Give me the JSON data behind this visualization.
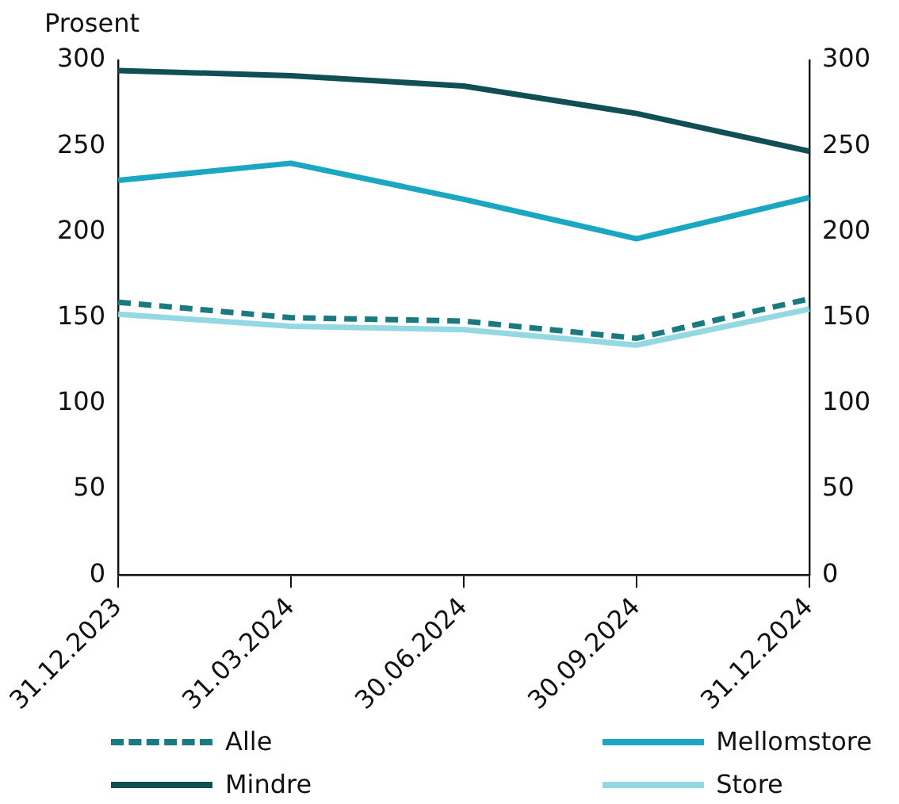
{
  "chart_data": {
    "type": "line",
    "ylabel": "Prosent",
    "categories": [
      "31.12.2023",
      "31.03.2024",
      "30.06.2024",
      "30.09.2024",
      "31.12.2024"
    ],
    "series": [
      {
        "name": "Alle",
        "color": "#1a7a80",
        "line_style": "dashed",
        "values": [
          159,
          150,
          148,
          138,
          161
        ]
      },
      {
        "name": "Mellomstore",
        "color": "#1ba6c1",
        "values": [
          230,
          240,
          219,
          196,
          220
        ]
      },
      {
        "name": "Mindre",
        "color": "#124f55",
        "values": [
          294,
          291,
          285,
          269,
          247
        ]
      },
      {
        "name": "Store",
        "color": "#93d8e2",
        "values": [
          152,
          145,
          143,
          134,
          155
        ]
      }
    ],
    "ylim": [
      0,
      300
    ],
    "yticks": [
      0,
      50,
      100,
      150,
      200,
      250,
      300
    ],
    "y2lim": [
      0,
      300
    ],
    "y2ticks": [
      0,
      50,
      100,
      150,
      200,
      250,
      300
    ],
    "grid": false,
    "legend": "bottom",
    "marker": "none",
    "line_style": "solid"
  }
}
